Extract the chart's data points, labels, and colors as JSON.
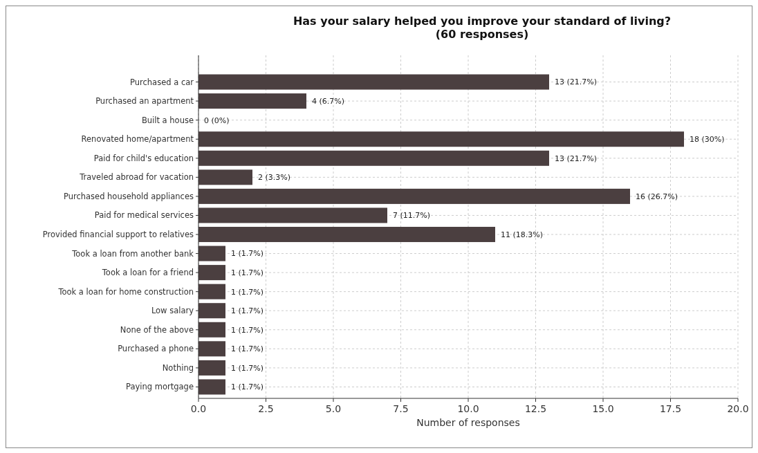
{
  "chart_data": {
    "type": "bar",
    "orientation": "horizontal",
    "title": "Has your salary helped you improve your standard of living?\n(60 responses)",
    "xlabel": "Number of responses",
    "categories": [
      "Purchased a car",
      "Purchased an apartment",
      "Built a house",
      "Renovated home/apartment",
      "Paid for child's education",
      "Traveled abroad for vacation",
      "Purchased household appliances",
      "Paid for medical services",
      "Provided financial support to relatives",
      "Took a loan from another bank",
      "Took a loan for a friend",
      "Took a loan for home construction",
      "Low salary",
      "None of the above",
      "Purchased a phone",
      "Nothing",
      "Paying mortgage"
    ],
    "values": [
      13,
      4,
      0,
      18,
      13,
      2,
      16,
      7,
      11,
      1,
      1,
      1,
      1,
      1,
      1,
      1,
      1
    ],
    "value_labels": [
      "13 (21.7%)",
      "4 (6.7%)",
      "0 (0%)",
      "18 (30%)",
      "13 (21.7%)",
      "2 (3.3%)",
      "16 (26.7%)",
      "7 (11.7%)",
      "11 (18.3%)",
      "1 (1.7%)",
      "1 (1.7%)",
      "1 (1.7%)",
      "1 (1.7%)",
      "1 (1.7%)",
      "1 (1.7%)",
      "1 (1.7%)",
      "1 (1.7%)"
    ],
    "color": "#4b3f40",
    "xlim": [
      0,
      20
    ],
    "xticks": [
      {
        "value": 0,
        "label": "0.0"
      },
      {
        "value": 2.5,
        "label": "2.5"
      },
      {
        "value": 5,
        "label": "5.0"
      },
      {
        "value": 7.5,
        "label": "7.5"
      },
      {
        "value": 10,
        "label": "10.0"
      },
      {
        "value": 12.5,
        "label": "12.5"
      },
      {
        "value": 15,
        "label": "15.0"
      },
      {
        "value": 17.5,
        "label": "17.5"
      },
      {
        "value": 20,
        "label": "20.0"
      }
    ],
    "grid": true
  }
}
